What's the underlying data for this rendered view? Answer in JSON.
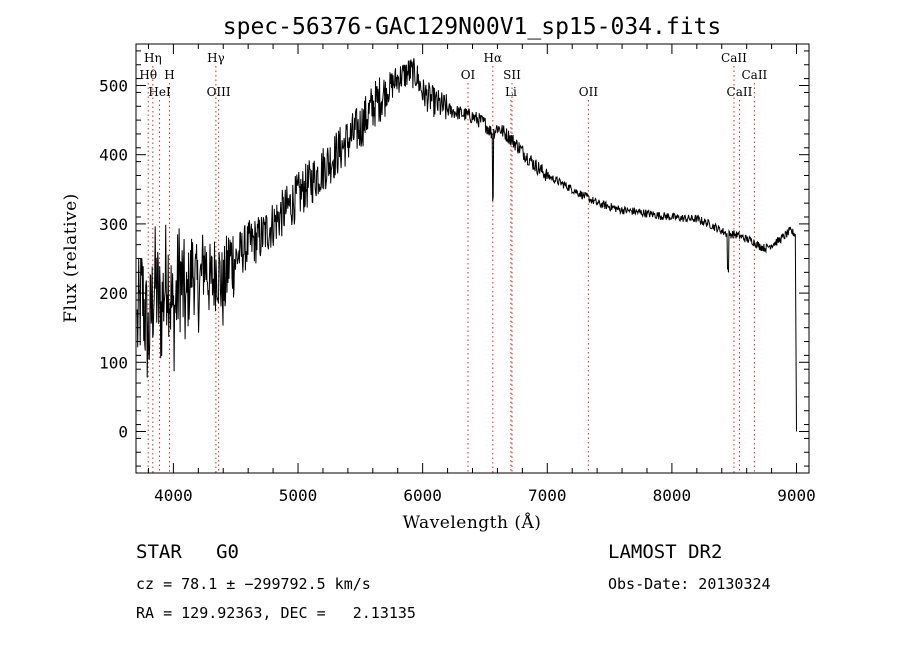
{
  "chart_data": {
    "type": "line",
    "title": "spec-56376-GAC129N00V1_sp15-034.fits",
    "xlabel": "Wavelength (Å)",
    "ylabel": "Flux (relative)",
    "xlim": [
      3700,
      9100
    ],
    "ylim": [
      -60,
      560
    ],
    "xticks": [
      4000,
      5000,
      6000,
      7000,
      8000,
      9000
    ],
    "yticks": [
      0,
      100,
      200,
      300,
      400,
      500
    ],
    "series": [
      {
        "x": [
          3710,
          3750,
          3800,
          3850,
          3900,
          3950,
          4000,
          4050,
          4100,
          4150,
          4200,
          4250,
          4300,
          4350,
          4400,
          4450,
          4500,
          4600,
          4700,
          4800,
          4900,
          5000,
          5100,
          5200,
          5300,
          5400,
          5500,
          5600,
          5700,
          5800,
          5900,
          5950,
          6000,
          6100,
          6200,
          6300,
          6400,
          6500,
          6560,
          6600,
          6700,
          6800,
          6900,
          7000,
          7100,
          7200,
          7300,
          7400,
          7500,
          7600,
          7700,
          7800,
          7900,
          8000,
          8100,
          8200,
          8300,
          8400,
          8450,
          8500,
          8550,
          8600,
          8650,
          8700,
          8750,
          8800,
          8850,
          8900,
          8950,
          8990,
          9000
        ],
        "y": [
          150,
          200,
          130,
          220,
          170,
          240,
          160,
          230,
          180,
          240,
          200,
          250,
          210,
          240,
          200,
          250,
          250,
          270,
          280,
          300,
          320,
          340,
          360,
          380,
          400,
          420,
          440,
          470,
          490,
          510,
          520,
          515,
          490,
          475,
          465,
          460,
          455,
          445,
          430,
          440,
          425,
          405,
          385,
          370,
          360,
          350,
          340,
          330,
          325,
          320,
          318,
          315,
          312,
          310,
          308,
          307,
          300,
          290,
          285,
          285,
          282,
          278,
          275,
          268,
          265,
          270,
          275,
          282,
          290,
          285,
          0
        ]
      }
    ],
    "spectral_lines": [
      {
        "label": "Hη",
        "x": 3835,
        "row": 1
      },
      {
        "label": "Hθ",
        "x": 3798,
        "row": 2
      },
      {
        "label": "H",
        "x": 3969,
        "row": 2
      },
      {
        "label": "HeI",
        "x": 3889,
        "row": 3
      },
      {
        "label": "Hγ",
        "x": 4341,
        "row": 1
      },
      {
        "label": "OIII",
        "x": 4363,
        "row": 3
      },
      {
        "label": "Hα",
        "x": 6563,
        "row": 1
      },
      {
        "label": "OI",
        "x": 6364,
        "row": 2
      },
      {
        "label": "SII",
        "x": 6717,
        "row": 2
      },
      {
        "label": "Li",
        "x": 6708,
        "row": 3
      },
      {
        "label": "OII",
        "x": 7330,
        "row": 3
      },
      {
        "label": "CaII",
        "x": 8498,
        "row": 1
      },
      {
        "label": "CaII",
        "x": 8662,
        "row": 2
      },
      {
        "label": "CaII",
        "x": 8542,
        "row": 3
      }
    ],
    "grid": false
  },
  "info": {
    "class_line": "STAR   G0",
    "survey": "LAMOST DR2",
    "cz_line": "cz = 78.1 ± −299792.5 km/s",
    "obs_date": "Obs-Date: 20130324",
    "radec_line": "RA = 129.92363, DEC =   2.13135"
  }
}
